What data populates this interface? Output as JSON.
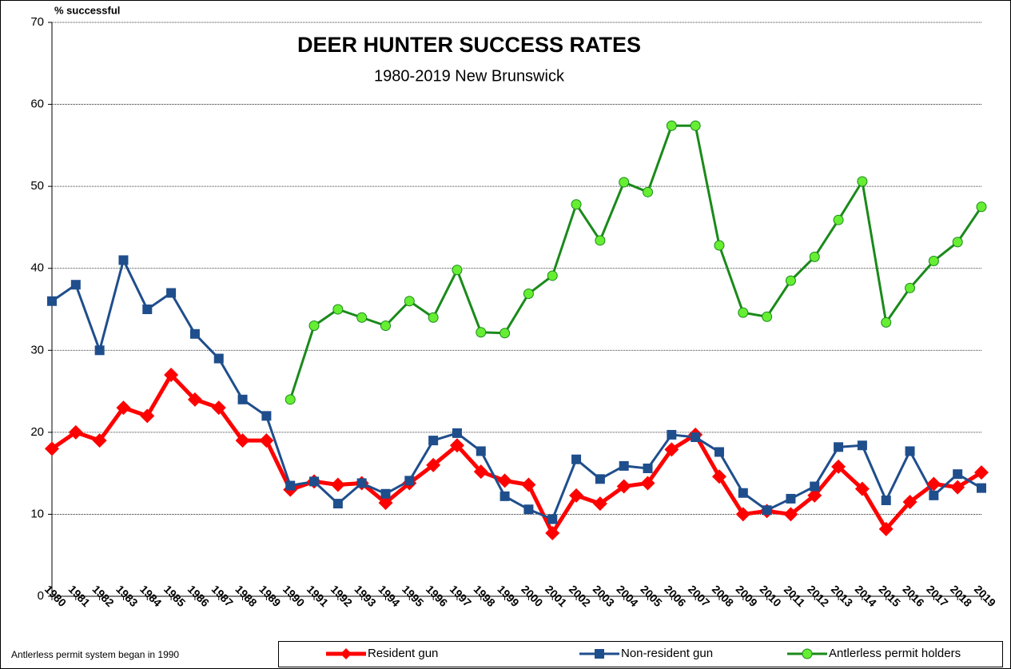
{
  "chart_data": {
    "type": "line",
    "title": "DEER HUNTER SUCCESS RATES",
    "subtitle": "1980-2019 New Brunswick",
    "y_label": "% successful",
    "annotation": "Antlerless permit system began in 1990",
    "categories": [
      "1980",
      "1981",
      "1982",
      "1983",
      "1984",
      "1985",
      "1986",
      "1987",
      "1988",
      "1989",
      "1990",
      "1991",
      "1992",
      "1993",
      "1994",
      "1995",
      "1996",
      "1997",
      "1998",
      "1999",
      "2000",
      "2001",
      "2002",
      "2003",
      "2004",
      "2005",
      "2006",
      "2007",
      "2008",
      "2009",
      "2010",
      "2011",
      "2012",
      "2013",
      "2014",
      "2015",
      "2016",
      "2017",
      "2018",
      "2019"
    ],
    "series": [
      {
        "name": "Resident gun",
        "color": "#ff0000",
        "marker": "diamond",
        "values": [
          18,
          20,
          19,
          23,
          22,
          27,
          24,
          23,
          19,
          19,
          13,
          14,
          13.6,
          13.8,
          11.4,
          13.8,
          16,
          18.4,
          15.2,
          14.1,
          13.6,
          7.7,
          12.3,
          11.3,
          13.4,
          13.8,
          17.9,
          19.7,
          14.6,
          10,
          10.4,
          10,
          12.3,
          15.8,
          13.1,
          8.2,
          11.5,
          13.7,
          13.3,
          15.1
        ]
      },
      {
        "name": "Non-resident gun",
        "color": "#1f4e8c",
        "marker": "square",
        "values": [
          36,
          38,
          30,
          41,
          35,
          37,
          32,
          29,
          24,
          22,
          13.5,
          14,
          11.3,
          13.8,
          12.5,
          14.1,
          19,
          19.9,
          17.7,
          12.2,
          10.6,
          9.4,
          16.7,
          14.3,
          15.9,
          15.6,
          19.7,
          19.4,
          17.6,
          12.6,
          10.5,
          11.9,
          13.4,
          18.2,
          18.4,
          11.7,
          17.7,
          12.3,
          14.9,
          13.2
        ]
      },
      {
        "name": "Antlerless permit holders",
        "color": "#1a8a1a",
        "marker": "circle",
        "values": [
          null,
          null,
          null,
          null,
          null,
          null,
          null,
          null,
          null,
          null,
          24,
          33,
          35,
          34,
          33,
          36,
          34,
          39.8,
          32.2,
          32.1,
          36.9,
          39.1,
          47.8,
          43.4,
          50.5,
          49.3,
          57.4,
          57.4,
          42.8,
          34.6,
          34.1,
          38.5,
          41.4,
          45.9,
          50.6,
          33.4,
          37.6,
          40.9,
          43.2,
          47.5
        ]
      }
    ],
    "ylim": [
      0,
      70
    ],
    "yticks": [
      0,
      10,
      20,
      30,
      40,
      50,
      60,
      70
    ],
    "grid": true
  }
}
